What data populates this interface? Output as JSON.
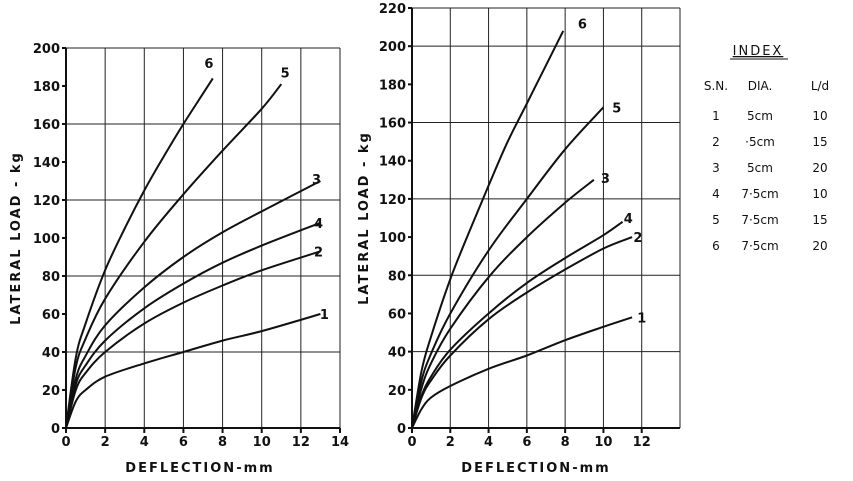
{
  "chart_data": [
    {
      "type": "line",
      "xlabel": "DEFLECTION-mm",
      "ylabel": "LATERAL LOAD - kg",
      "xlim": [
        0,
        14
      ],
      "ylim": [
        0,
        200
      ],
      "xticks": [
        0,
        2,
        4,
        6,
        8,
        10,
        12,
        14
      ],
      "yticks": [
        0,
        20,
        40,
        60,
        80,
        100,
        120,
        140,
        160,
        180,
        200
      ],
      "grid": true,
      "series": [
        {
          "name": "1",
          "x": [
            0,
            0.5,
            1,
            2,
            4,
            6,
            8,
            10,
            13
          ],
          "y": [
            0,
            14,
            20,
            27,
            34,
            40,
            46,
            51,
            60
          ]
        },
        {
          "name": "2",
          "x": [
            0,
            0.5,
            1,
            2,
            4,
            6,
            8,
            10,
            13
          ],
          "y": [
            0,
            20,
            29,
            40,
            55,
            66,
            75,
            83,
            93
          ]
        },
        {
          "name": "4",
          "x": [
            0,
            0.5,
            1,
            2,
            4,
            6,
            8,
            10,
            13
          ],
          "y": [
            0,
            23,
            33,
            46,
            63,
            76,
            87,
            96,
            108
          ]
        },
        {
          "name": "3",
          "x": [
            0,
            0.5,
            1,
            2,
            4,
            6,
            8,
            10,
            13
          ],
          "y": [
            0,
            26,
            38,
            54,
            74,
            90,
            103,
            114,
            130
          ]
        },
        {
          "name": "5",
          "x": [
            0,
            0.5,
            1,
            2,
            4,
            6,
            8,
            10,
            11
          ],
          "y": [
            0,
            32,
            47,
            68,
            98,
            123,
            146,
            168,
            181
          ]
        },
        {
          "name": "6",
          "x": [
            0,
            0.5,
            1,
            2,
            3,
            4,
            5,
            6,
            7,
            7.5
          ],
          "y": [
            0,
            37,
            55,
            83,
            105,
            125,
            143,
            160,
            176,
            184
          ]
        }
      ],
      "labels": [
        "1",
        "2",
        "3",
        "4",
        "5",
        "6"
      ]
    },
    {
      "type": "line",
      "xlabel": "DEFLECTION-mm",
      "ylabel": "LATERAL LOAD - kg",
      "xlim": [
        0,
        14
      ],
      "ylim": [
        0,
        220
      ],
      "xticks": [
        0,
        2,
        4,
        6,
        8,
        10,
        12
      ],
      "yticks": [
        0,
        20,
        40,
        60,
        80,
        100,
        120,
        140,
        160,
        180,
        200,
        220
      ],
      "grid": true,
      "series": [
        {
          "name": "1",
          "x": [
            0,
            0.5,
            1,
            2,
            4,
            6,
            8,
            10,
            11.5
          ],
          "y": [
            0,
            10,
            16,
            22,
            31,
            38,
            46,
            53,
            58
          ]
        },
        {
          "name": "2",
          "x": [
            0,
            0.5,
            1,
            2,
            4,
            6,
            8,
            10,
            11.5
          ],
          "y": [
            0,
            16,
            25,
            38,
            57,
            71,
            83,
            94,
            100
          ]
        },
        {
          "name": "4",
          "x": [
            0,
            0.5,
            1,
            2,
            4,
            6,
            8,
            10,
            11
          ],
          "y": [
            0,
            17,
            27,
            41,
            60,
            76,
            89,
            101,
            108
          ]
        },
        {
          "name": "3",
          "x": [
            0,
            0.5,
            1,
            2,
            4,
            6,
            8,
            9.5
          ],
          "y": [
            0,
            21,
            34,
            52,
            79,
            100,
            118,
            130
          ]
        },
        {
          "name": "5",
          "x": [
            0,
            0.5,
            1,
            2,
            4,
            6,
            8,
            10
          ],
          "y": [
            0,
            25,
            39,
            60,
            93,
            120,
            146,
            168
          ]
        },
        {
          "name": "6",
          "x": [
            0,
            0.5,
            1,
            2,
            3,
            4,
            5,
            6,
            7,
            7.9
          ],
          "y": [
            0,
            30,
            48,
            78,
            103,
            127,
            150,
            170,
            190,
            208
          ]
        }
      ],
      "labels": [
        "1",
        "2",
        "3",
        "4",
        "5",
        "6"
      ]
    },
    {
      "type": "table",
      "title": "INDEX",
      "columns": [
        "S.N.",
        "DIA.",
        "L/d"
      ],
      "rows": [
        [
          "1",
          "5cm",
          "10"
        ],
        [
          "2",
          "·5cm",
          "15"
        ],
        [
          "3",
          "5cm",
          "20"
        ],
        [
          "4",
          "7·5cm",
          "10"
        ],
        [
          "5",
          "7·5cm",
          "15"
        ],
        [
          "6",
          "7·5cm",
          "20"
        ]
      ]
    }
  ]
}
